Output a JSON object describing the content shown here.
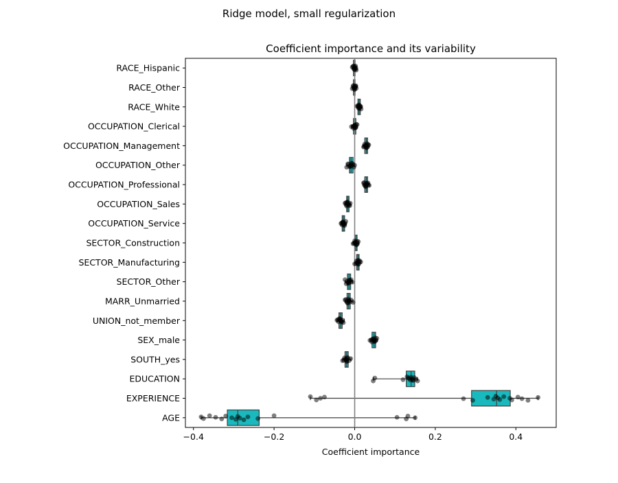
{
  "figure": {
    "suptitle": "Ridge model, small regularization"
  },
  "chart_data": {
    "type": "box",
    "title": "Coefficient importance and its variability",
    "xlabel": "Coefficient importance",
    "ylabel": "",
    "xlim": [
      -0.42,
      0.5
    ],
    "xticks": [
      -0.4,
      -0.2,
      0.0,
      0.2,
      0.4
    ],
    "xtick_labels": [
      "−0.4",
      "−0.2",
      "0.0",
      "0.2",
      "0.4"
    ],
    "grid": false,
    "box_color": "#1ab9bd",
    "point_color": "#000000",
    "zero_line_color": "#808080",
    "categories": [
      "RACE_Hispanic",
      "RACE_Other",
      "RACE_White",
      "OCCUPATION_Clerical",
      "OCCUPATION_Management",
      "OCCUPATION_Other",
      "OCCUPATION_Professional",
      "OCCUPATION_Sales",
      "OCCUPATION_Service",
      "SECTOR_Construction",
      "SECTOR_Manufacturing",
      "SECTOR_Other",
      "MARR_Unmarried",
      "UNION_not_member",
      "SEX_male",
      "SOUTH_yes",
      "EDUCATION",
      "EXPERIENCE",
      "AGE"
    ],
    "boxes": [
      {
        "label": "RACE_Hispanic",
        "min": -0.006,
        "q1": -0.003,
        "median": -0.001,
        "q3": 0.001,
        "max": 0.004
      },
      {
        "label": "RACE_Other",
        "min": -0.006,
        "q1": -0.003,
        "median": -0.001,
        "q3": 0.001,
        "max": 0.004
      },
      {
        "label": "RACE_White",
        "min": 0.005,
        "q1": 0.008,
        "median": 0.011,
        "q3": 0.014,
        "max": 0.017
      },
      {
        "label": "OCCUPATION_Clerical",
        "min": -0.008,
        "q1": -0.003,
        "median": 0.0,
        "q3": 0.003,
        "max": 0.007
      },
      {
        "label": "OCCUPATION_Management",
        "min": 0.02,
        "q1": 0.025,
        "median": 0.029,
        "q3": 0.032,
        "max": 0.036
      },
      {
        "label": "OCCUPATION_Other",
        "min": -0.02,
        "q1": -0.013,
        "median": -0.009,
        "q3": -0.004,
        "max": 0.0
      },
      {
        "label": "OCCUPATION_Professional",
        "min": 0.02,
        "q1": 0.025,
        "median": 0.029,
        "q3": 0.032,
        "max": 0.036
      },
      {
        "label": "OCCUPATION_Sales",
        "min": -0.024,
        "q1": -0.02,
        "median": -0.017,
        "q3": -0.014,
        "max": -0.01
      },
      {
        "label": "OCCUPATION_Service",
        "min": -0.034,
        "q1": -0.031,
        "median": -0.028,
        "q3": -0.025,
        "max": -0.021
      },
      {
        "label": "SECTOR_Construction",
        "min": -0.004,
        "q1": 0.0,
        "median": 0.003,
        "q3": 0.006,
        "max": 0.01
      },
      {
        "label": "SECTOR_Manufacturing",
        "min": 0.0,
        "q1": 0.005,
        "median": 0.008,
        "q3": 0.011,
        "max": 0.016
      },
      {
        "label": "SECTOR_Other",
        "min": -0.024,
        "q1": -0.018,
        "median": -0.014,
        "q3": -0.01,
        "max": -0.005
      },
      {
        "label": "MARR_Unmarried",
        "min": -0.024,
        "q1": -0.019,
        "median": -0.015,
        "q3": -0.011,
        "max": -0.004
      },
      {
        "label": "UNION_not_member",
        "min": -0.044,
        "q1": -0.039,
        "median": -0.035,
        "q3": -0.031,
        "max": -0.026
      },
      {
        "label": "SEX_male",
        "min": 0.038,
        "q1": 0.043,
        "median": 0.048,
        "q3": 0.052,
        "max": 0.056
      },
      {
        "label": "SOUTH_yes",
        "min": -0.03,
        "q1": -0.024,
        "median": -0.02,
        "q3": -0.016,
        "max": -0.009
      },
      {
        "label": "EDUCATION",
        "min": 0.046,
        "q1": 0.128,
        "median": 0.14,
        "q3": 0.149,
        "max": 0.156
      },
      {
        "label": "EXPERIENCE",
        "min": -0.11,
        "q1": 0.29,
        "median": 0.352,
        "q3": 0.386,
        "max": 0.455
      },
      {
        "label": "AGE",
        "min": -0.381,
        "q1": -0.316,
        "median": -0.29,
        "q3": -0.237,
        "max": 0.15
      }
    ],
    "points": [
      [
        -0.003,
        0.0,
        0.002,
        -0.004,
        0.003,
        -0.001,
        0.001,
        -0.002,
        0.004,
        -0.006,
        0.0,
        0.002
      ],
      [
        -0.004,
        -0.002,
        0.0,
        0.002,
        0.004,
        -0.003,
        0.001,
        -0.006,
        0.003,
        -0.001,
        0.0,
        0.002
      ],
      [
        0.008,
        0.01,
        0.012,
        0.014,
        0.011,
        0.009,
        0.013,
        0.016,
        0.006,
        0.012,
        0.01,
        0.015
      ],
      [
        -0.008,
        -0.003,
        0.0,
        0.002,
        0.004,
        -0.001,
        0.003,
        0.006,
        -0.004,
        0.001,
        0.0,
        -0.002
      ],
      [
        0.022,
        0.025,
        0.028,
        0.03,
        0.033,
        0.027,
        0.029,
        0.035,
        0.024,
        0.031,
        0.026,
        0.032
      ],
      [
        -0.02,
        -0.015,
        -0.012,
        -0.008,
        -0.004,
        -0.01,
        -0.006,
        0.0,
        -0.013,
        -0.017,
        -0.009,
        -0.002
      ],
      [
        0.022,
        0.025,
        0.028,
        0.031,
        0.034,
        0.027,
        0.029,
        0.036,
        0.024,
        0.03,
        0.026,
        0.033
      ],
      [
        -0.024,
        -0.021,
        -0.018,
        -0.016,
        -0.014,
        -0.019,
        -0.017,
        -0.012,
        -0.022,
        -0.015,
        -0.02,
        -0.011
      ],
      [
        -0.034,
        -0.031,
        -0.029,
        -0.027,
        -0.025,
        -0.03,
        -0.028,
        -0.022,
        -0.032,
        -0.026,
        -0.029,
        -0.024
      ],
      [
        -0.004,
        0.0,
        0.002,
        0.004,
        0.006,
        0.001,
        0.003,
        0.009,
        -0.002,
        0.005,
        0.002,
        0.007
      ],
      [
        0.0,
        0.004,
        0.007,
        0.009,
        0.011,
        0.006,
        0.008,
        0.015,
        0.003,
        0.012,
        0.007,
        0.01
      ],
      [
        -0.024,
        -0.019,
        -0.016,
        -0.013,
        -0.01,
        -0.015,
        -0.012,
        -0.006,
        -0.021,
        -0.014,
        -0.017,
        -0.009
      ],
      [
        -0.024,
        -0.02,
        -0.017,
        -0.014,
        -0.011,
        -0.016,
        -0.013,
        -0.004,
        -0.022,
        -0.015,
        -0.018,
        -0.009
      ],
      [
        -0.044,
        -0.04,
        -0.037,
        -0.035,
        -0.032,
        -0.036,
        -0.034,
        -0.028,
        -0.042,
        -0.033,
        -0.038,
        -0.03
      ],
      [
        0.038,
        0.043,
        0.046,
        0.048,
        0.051,
        0.047,
        0.049,
        0.055,
        0.041,
        0.05,
        0.045,
        0.053
      ],
      [
        -0.03,
        -0.025,
        -0.022,
        -0.02,
        -0.017,
        -0.021,
        -0.019,
        -0.01,
        -0.027,
        -0.018,
        -0.023,
        -0.014
      ],
      [
        0.046,
        0.05,
        0.12,
        0.13,
        0.135,
        0.138,
        0.14,
        0.142,
        0.145,
        0.148,
        0.152,
        0.156,
        0.133,
        0.144
      ],
      [
        -0.11,
        -0.085,
        -0.095,
        -0.075,
        0.27,
        0.293,
        0.33,
        0.345,
        0.35,
        0.355,
        0.36,
        0.37,
        0.385,
        0.39,
        0.405,
        0.415,
        0.43,
        0.455
      ],
      [
        -0.381,
        -0.375,
        -0.36,
        -0.345,
        -0.33,
        -0.32,
        -0.305,
        -0.295,
        -0.29,
        -0.285,
        -0.275,
        -0.265,
        -0.24,
        -0.2,
        0.105,
        0.128,
        0.132,
        0.15
      ]
    ]
  }
}
